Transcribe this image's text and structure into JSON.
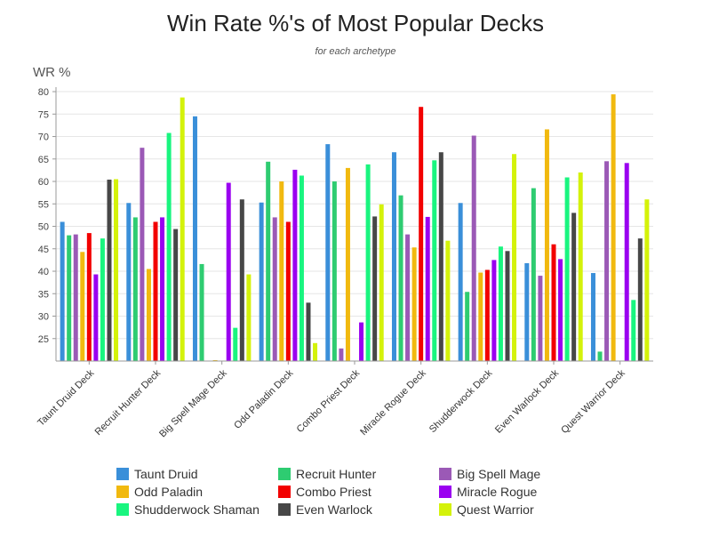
{
  "chart_data": {
    "type": "bar",
    "title": "Win Rate %'s of Most Popular Decks",
    "subtitle": "for each archetype",
    "ylabel": "WR %",
    "xlabel": "",
    "ylim": [
      20,
      81
    ],
    "yticks": [
      25,
      30,
      35,
      40,
      45,
      50,
      55,
      60,
      65,
      70,
      75,
      80
    ],
    "grid": true,
    "legend_position": "bottom",
    "categories": [
      "Taunt Druid Deck",
      "Recruit Hunter Deck",
      "Big Spell Mage Deck",
      "Odd Paladin Deck",
      "Combo Priest Deck",
      "Miracle Rogue Deck",
      "Shudderwock Deck",
      "Even Warlock Deck",
      "Quest Warrior Deck"
    ],
    "series": [
      {
        "name": "Taunt Druid",
        "color": "#3a8fd9",
        "values": [
          51.0,
          55.2,
          74.5,
          55.3,
          68.3,
          66.5,
          55.2,
          41.8,
          39.6
        ]
      },
      {
        "name": "Recruit Hunter",
        "color": "#2ecc71",
        "values": [
          48.0,
          52.0,
          41.6,
          64.4,
          60.0,
          56.9,
          35.4,
          58.5,
          22.1
        ]
      },
      {
        "name": "Big Spell Mage",
        "color": "#9b59b6",
        "values": [
          48.2,
          67.5,
          null,
          52.0,
          22.8,
          48.2,
          70.2,
          39.0,
          64.5
        ]
      },
      {
        "name": "Odd Paladin",
        "color": "#f1b90f",
        "values": [
          44.3,
          40.5,
          20.2,
          60.0,
          63.0,
          45.3,
          39.7,
          71.6,
          79.4
        ]
      },
      {
        "name": "Combo Priest",
        "color": "#f20000",
        "values": [
          48.5,
          51.0,
          null,
          51.0,
          null,
          76.6,
          40.3,
          46.0,
          null
        ]
      },
      {
        "name": "Miracle Rogue",
        "color": "#9a00f0",
        "values": [
          39.3,
          52.0,
          59.7,
          62.6,
          28.6,
          52.1,
          42.5,
          42.7,
          64.1
        ]
      },
      {
        "name": "Shudderwock Shaman",
        "color": "#19f57f",
        "values": [
          47.3,
          70.8,
          27.4,
          61.3,
          63.8,
          64.7,
          45.5,
          60.9,
          33.6
        ]
      },
      {
        "name": "Even Warlock",
        "color": "#474747",
        "values": [
          60.4,
          49.4,
          56.0,
          33.0,
          52.2,
          66.5,
          44.5,
          53.0,
          47.3
        ]
      },
      {
        "name": "Quest Warrior",
        "color": "#d4f20a",
        "values": [
          60.5,
          78.7,
          39.3,
          24.0,
          54.9,
          46.8,
          66.1,
          62.0,
          56.0
        ]
      }
    ]
  }
}
